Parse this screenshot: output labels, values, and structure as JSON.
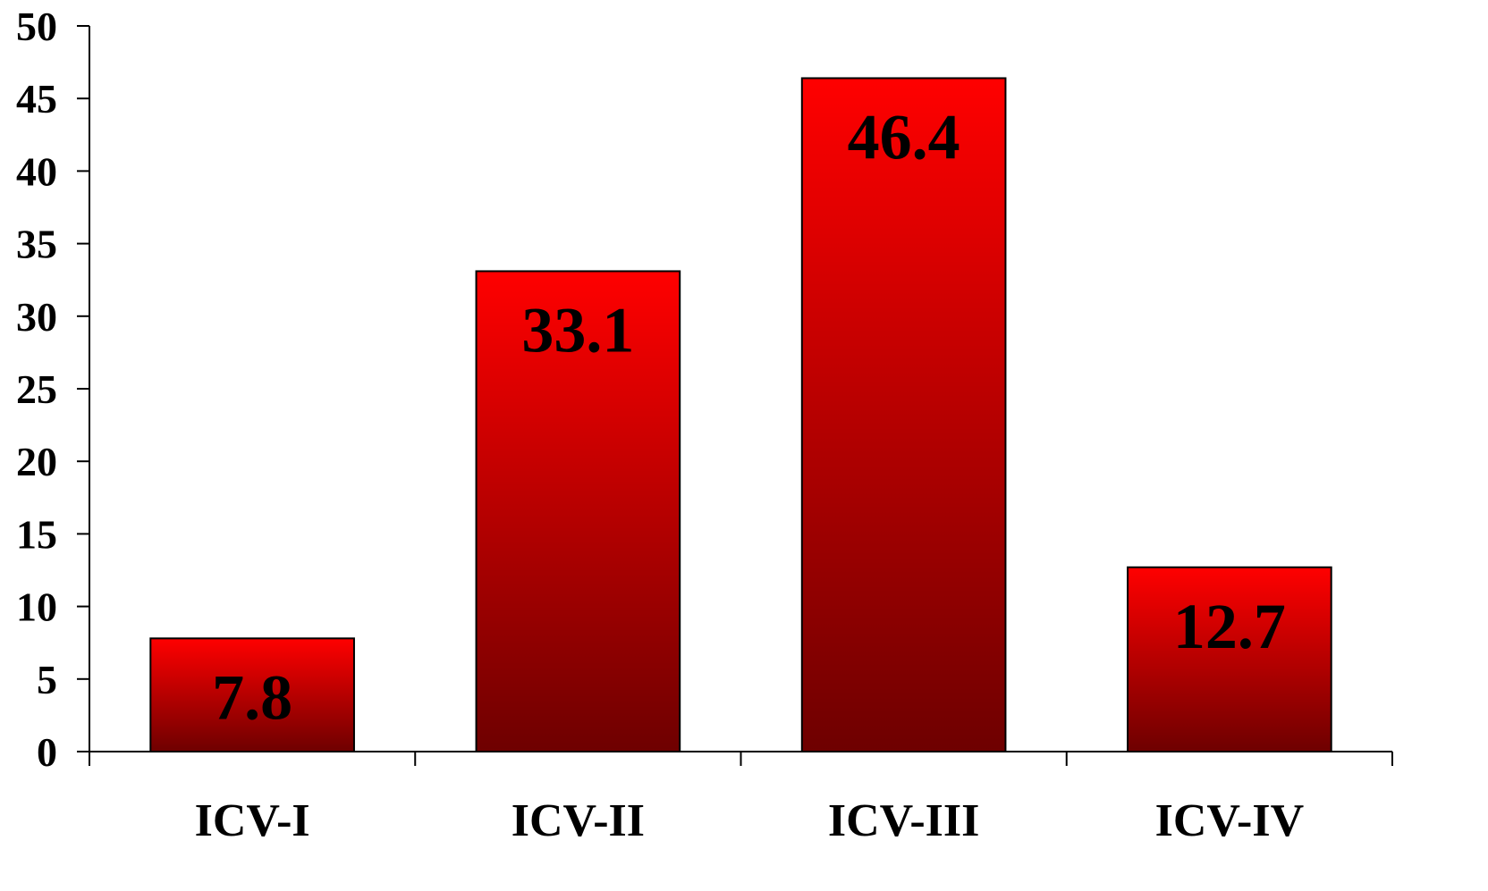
{
  "chart_data": {
    "type": "bar",
    "categories": [
      "ICV-I",
      "ICV-II",
      "ICV-III",
      "ICV-IV"
    ],
    "values": [
      7.8,
      33.1,
      46.4,
      12.7
    ],
    "data_labels": [
      "7.8",
      "33.1",
      "46.4",
      "12.7"
    ],
    "title": "",
    "xlabel": "",
    "ylabel": "",
    "ylim": [
      0,
      50
    ],
    "yticks": [
      0,
      5,
      10,
      15,
      20,
      25,
      30,
      35,
      40,
      45,
      50
    ],
    "grid": false,
    "legend": "none",
    "colors": {
      "bar_top": "#ff0000",
      "bar_bottom": "#6e0000",
      "bar_border": "#000000",
      "text": "#000000",
      "axis": "#000000"
    }
  }
}
